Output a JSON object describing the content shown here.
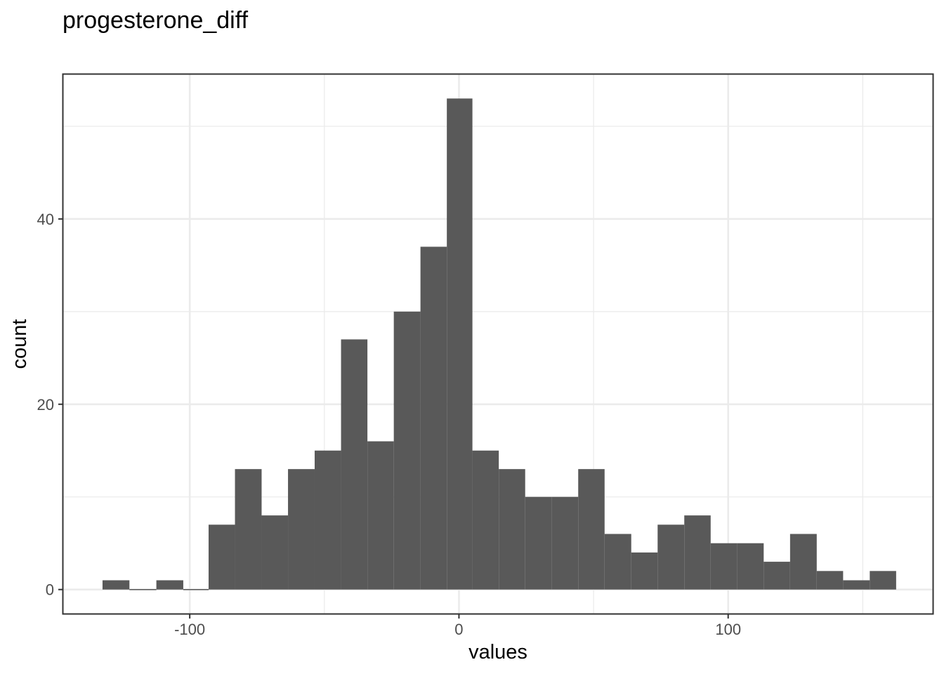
{
  "chart_data": {
    "type": "bar",
    "title": "progesterone_diff",
    "xlabel": "values",
    "ylabel": "count",
    "xlim": [
      -147,
      176
    ],
    "ylim": [
      -2.6,
      55.6
    ],
    "x_ticks": [
      -100,
      0,
      100
    ],
    "x_tick_labels": [
      "-100",
      "0",
      "100"
    ],
    "y_ticks": [
      0,
      20,
      40
    ],
    "y_tick_labels": [
      "0",
      "20",
      "40"
    ],
    "x_minor_ticks": [
      -50,
      50,
      150
    ],
    "y_minor_ticks": [
      10,
      30,
      50
    ],
    "grid": true,
    "bar_color": "#595959",
    "bins": [
      {
        "x0": -132.4,
        "x1": -122.4,
        "count": 1
      },
      {
        "x0": -122.4,
        "x1": -112.4,
        "count": 0
      },
      {
        "x0": -112.4,
        "x1": -102.4,
        "count": 1
      },
      {
        "x0": -102.4,
        "x1": -93.0,
        "count": 0
      },
      {
        "x0": -93.0,
        "x1": -83.2,
        "count": 7
      },
      {
        "x0": -83.2,
        "x1": -73.3,
        "count": 13
      },
      {
        "x0": -73.3,
        "x1": -63.5,
        "count": 8
      },
      {
        "x0": -63.5,
        "x1": -53.6,
        "count": 13
      },
      {
        "x0": -53.6,
        "x1": -43.8,
        "count": 15
      },
      {
        "x0": -43.8,
        "x1": -34.0,
        "count": 27
      },
      {
        "x0": -34.0,
        "x1": -24.2,
        "count": 16
      },
      {
        "x0": -24.2,
        "x1": -14.3,
        "count": 30
      },
      {
        "x0": -14.3,
        "x1": -4.5,
        "count": 37
      },
      {
        "x0": -4.5,
        "x1": 5.0,
        "count": 53
      },
      {
        "x0": 5.0,
        "x1": 14.8,
        "count": 15
      },
      {
        "x0": 14.8,
        "x1": 24.6,
        "count": 13
      },
      {
        "x0": 24.6,
        "x1": 34.5,
        "count": 10
      },
      {
        "x0": 34.5,
        "x1": 44.3,
        "count": 10
      },
      {
        "x0": 44.3,
        "x1": 54.1,
        "count": 13
      },
      {
        "x0": 54.1,
        "x1": 64.0,
        "count": 6
      },
      {
        "x0": 64.0,
        "x1": 73.8,
        "count": 4
      },
      {
        "x0": 73.8,
        "x1": 83.7,
        "count": 7
      },
      {
        "x0": 83.7,
        "x1": 93.5,
        "count": 8
      },
      {
        "x0": 93.5,
        "x1": 103.3,
        "count": 5
      },
      {
        "x0": 103.3,
        "x1": 113.2,
        "count": 5
      },
      {
        "x0": 113.2,
        "x1": 123.0,
        "count": 3
      },
      {
        "x0": 123.0,
        "x1": 132.9,
        "count": 6
      },
      {
        "x0": 132.9,
        "x1": 142.7,
        "count": 2
      },
      {
        "x0": 142.7,
        "x1": 152.6,
        "count": 1
      },
      {
        "x0": 152.6,
        "x1": 162.4,
        "count": 2
      }
    ]
  }
}
